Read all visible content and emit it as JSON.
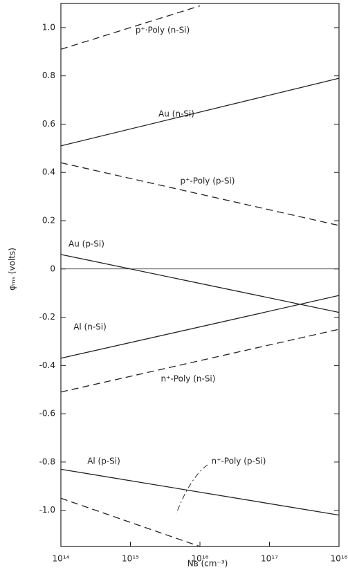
{
  "chart_data": {
    "type": "line",
    "x_label": "Nʙ (cm⁻³)",
    "y_label": "φₘₛ (volts)",
    "log_x": true,
    "zero_line": true,
    "xlim": [
      100000000000000.0,
      1e+18
    ],
    "ylim": [
      -1.15,
      1.1
    ],
    "xticks": [
      {
        "value": 100000000000000.0,
        "label": "10¹⁴"
      },
      {
        "value": 1000000000000000.0,
        "label": "10¹⁵"
      },
      {
        "value": 1e+16,
        "label": "10¹⁶"
      },
      {
        "value": 1e+17,
        "label": "10¹⁷"
      },
      {
        "value": 1e+18,
        "label": "10¹⁸"
      }
    ],
    "yticks": [
      {
        "value": 1,
        "label": "1.0"
      },
      0.8,
      0.6,
      0.4,
      0.2,
      0,
      -0.2,
      -0.4,
      -0.6,
      -0.8,
      {
        "value": -1,
        "label": "-1.0"
      }
    ],
    "series": [
      {
        "name": "p⁺·Poly (n-Si)",
        "color": "#222",
        "dash": true,
        "x": [
          100000000000000.0,
          1e+16
        ],
        "values": [
          0.91,
          1.09
        ]
      },
      {
        "name": "Au (n-Si)",
        "color": "#222",
        "dash": false,
        "x": [
          100000000000000.0,
          1e+18
        ],
        "values": [
          0.51,
          0.79
        ]
      },
      {
        "name": "p⁺-Poly (p-Si)",
        "color": "#222",
        "dash": true,
        "x": [
          100000000000000.0,
          1e+18
        ],
        "values": [
          0.44,
          0.18
        ]
      },
      {
        "name": "Au (p-Si)",
        "color": "#222",
        "dash": false,
        "x": [
          100000000000000.0,
          1e+18
        ],
        "values": [
          0.06,
          -0.18
        ]
      },
      {
        "name": "Al (n-Si)",
        "color": "#222",
        "dash": false,
        "x": [
          100000000000000.0,
          1e+18
        ],
        "values": [
          -0.37,
          -0.11
        ]
      },
      {
        "name": "n⁺-Poly (n-Si)",
        "color": "#222",
        "dash": true,
        "x": [
          100000000000000.0,
          1e+18
        ],
        "values": [
          -0.51,
          -0.25
        ]
      },
      {
        "name": "Al (p-Si)",
        "color": "#222",
        "dash": false,
        "x": [
          100000000000000.0,
          1e+18
        ],
        "values": [
          -0.83,
          -1.02
        ]
      },
      {
        "name": "n⁺-Poly (p-Si)",
        "color": "#222",
        "dash": true,
        "x": [
          100000000000000.0,
          1e+16
        ],
        "values": [
          -0.95,
          -1.15
        ]
      }
    ]
  }
}
